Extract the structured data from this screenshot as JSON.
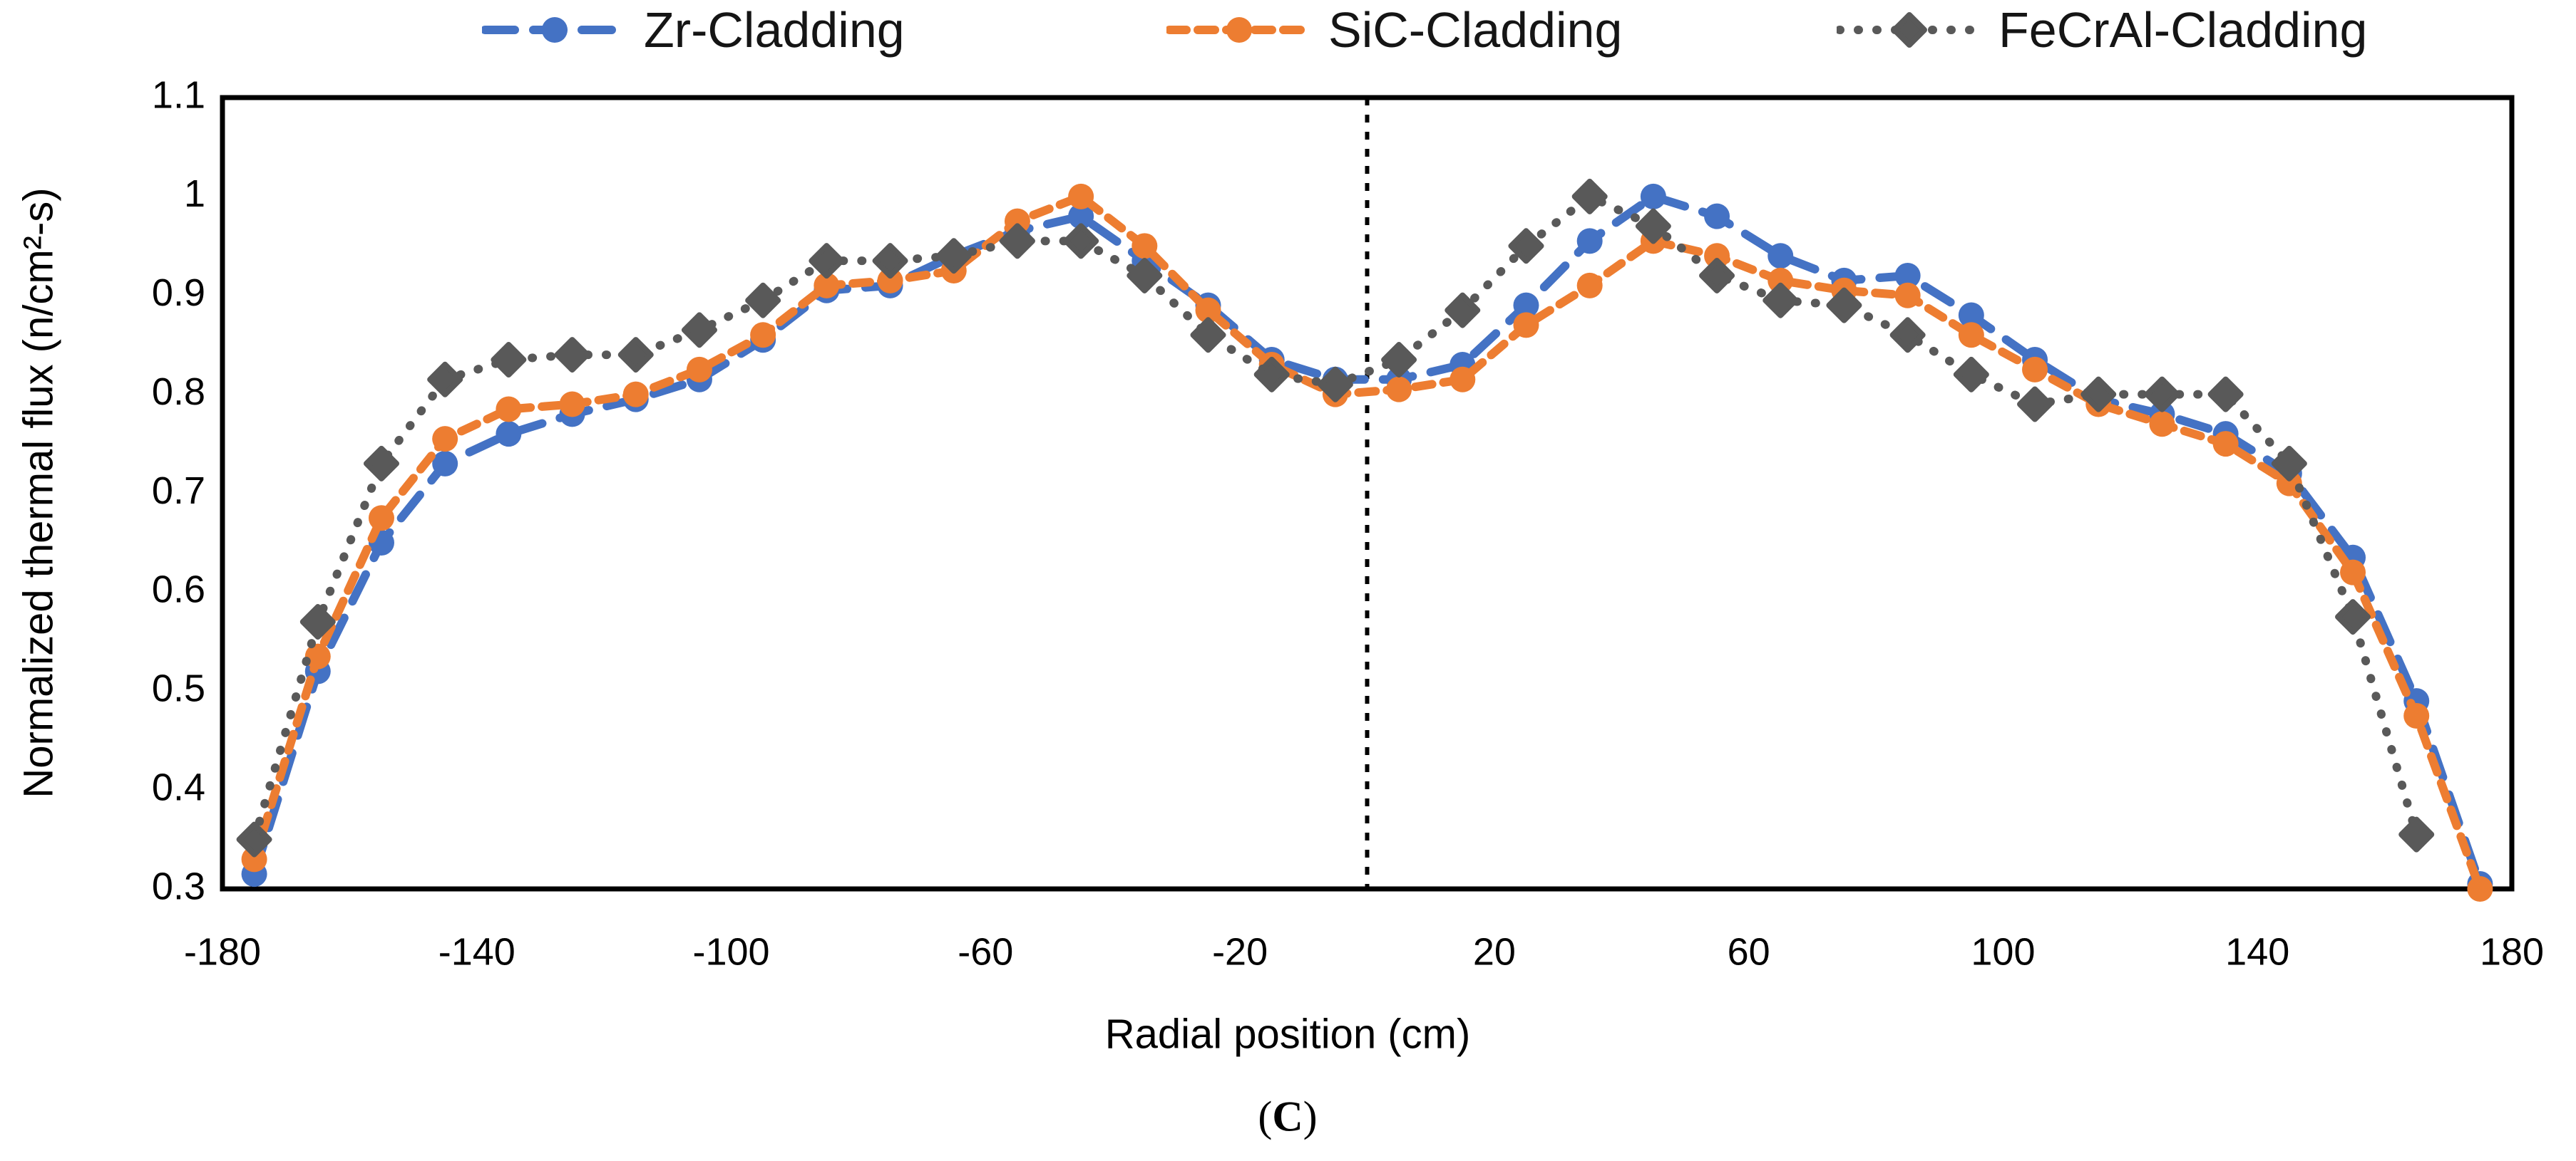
{
  "legend": {
    "items": [
      {
        "id": "zr",
        "label": "Zr-Cladding"
      },
      {
        "id": "sic",
        "label": "SiC-Cladding"
      },
      {
        "id": "fecral",
        "label": "FeCrAl-Cladding"
      }
    ]
  },
  "axes": {
    "x_title": "Radial position (cm)",
    "y_title": "Normalized thermal flux (n/cm²-s)"
  },
  "caption": {
    "open": "(",
    "letter": "C",
    "close": ")"
  },
  "colors": {
    "zr_blue": "#4472C4",
    "sic_orange": "#ED7D31",
    "fecral_gray": "#595959",
    "axis_black": "#000000"
  },
  "chart_data": {
    "type": "line",
    "title": "",
    "xlabel": "Radial position (cm)",
    "ylabel": "Normalized thermal flux (n/cm²-s)",
    "xlim": [
      -180,
      180
    ],
    "ylim": [
      0.3,
      1.1
    ],
    "xticks": [
      -180,
      -140,
      -100,
      -60,
      -20,
      20,
      60,
      100,
      140,
      180
    ],
    "yticks": [
      0.3,
      0.4,
      0.5,
      0.6,
      0.7,
      0.8,
      0.9,
      1,
      1.1
    ],
    "ytick_labels": [
      "0.3",
      "0.4",
      "0.5",
      "0.6",
      "0.7",
      "0.8",
      "0.9",
      "1",
      "1.1"
    ],
    "grid": false,
    "legend_position": "top",
    "vline_x": 0,
    "x": [
      -175,
      -165,
      -155,
      -145,
      -135,
      -125,
      -115,
      -105,
      -95,
      -85,
      -75,
      -65,
      -55,
      -45,
      -35,
      -25,
      -15,
      -5,
      5,
      15,
      25,
      35,
      45,
      55,
      65,
      75,
      85,
      95,
      105,
      115,
      125,
      135,
      145,
      155,
      165,
      175
    ],
    "series": [
      {
        "id": "zr",
        "name": "Zr-Cladding",
        "color": "#4472C4",
        "marker": "circle",
        "dash": "long-dash",
        "values": [
          0.315,
          0.52,
          0.65,
          0.73,
          0.76,
          0.78,
          0.795,
          0.815,
          0.855,
          0.905,
          0.91,
          0.94,
          0.965,
          0.98,
          0.935,
          0.89,
          0.835,
          0.815,
          0.815,
          0.83,
          0.89,
          0.955,
          1.0,
          0.98,
          0.94,
          0.915,
          0.92,
          0.88,
          0.835,
          0.795,
          0.78,
          0.76,
          0.72,
          0.635,
          0.49,
          0.305
        ]
      },
      {
        "id": "sic",
        "name": "SiC-Cladding",
        "color": "#ED7D31",
        "marker": "circle",
        "dash": "short-dash",
        "values": [
          0.33,
          0.535,
          0.675,
          0.755,
          0.785,
          0.79,
          0.8,
          0.825,
          0.86,
          0.91,
          0.915,
          0.925,
          0.975,
          1.0,
          0.95,
          0.885,
          0.83,
          0.8,
          0.805,
          0.815,
          0.87,
          0.91,
          0.955,
          0.94,
          0.915,
          0.905,
          0.9,
          0.86,
          0.825,
          0.79,
          0.77,
          0.75,
          0.71,
          0.62,
          0.475,
          0.3
        ]
      },
      {
        "id": "fecral",
        "name": "FeCrAl-Cladding",
        "color": "#595959",
        "marker": "diamond",
        "dash": "dot",
        "values": [
          0.35,
          0.57,
          0.73,
          0.815,
          0.835,
          0.84,
          0.84,
          0.865,
          0.895,
          0.935,
          0.935,
          0.94,
          0.955,
          0.955,
          0.92,
          0.86,
          0.82,
          0.81,
          0.835,
          0.885,
          0.95,
          1.0,
          0.97,
          0.92,
          0.895,
          0.89,
          0.86,
          0.82,
          0.79,
          0.8,
          0.8,
          0.8,
          0.73,
          0.575,
          0.355,
          null
        ]
      }
    ]
  }
}
